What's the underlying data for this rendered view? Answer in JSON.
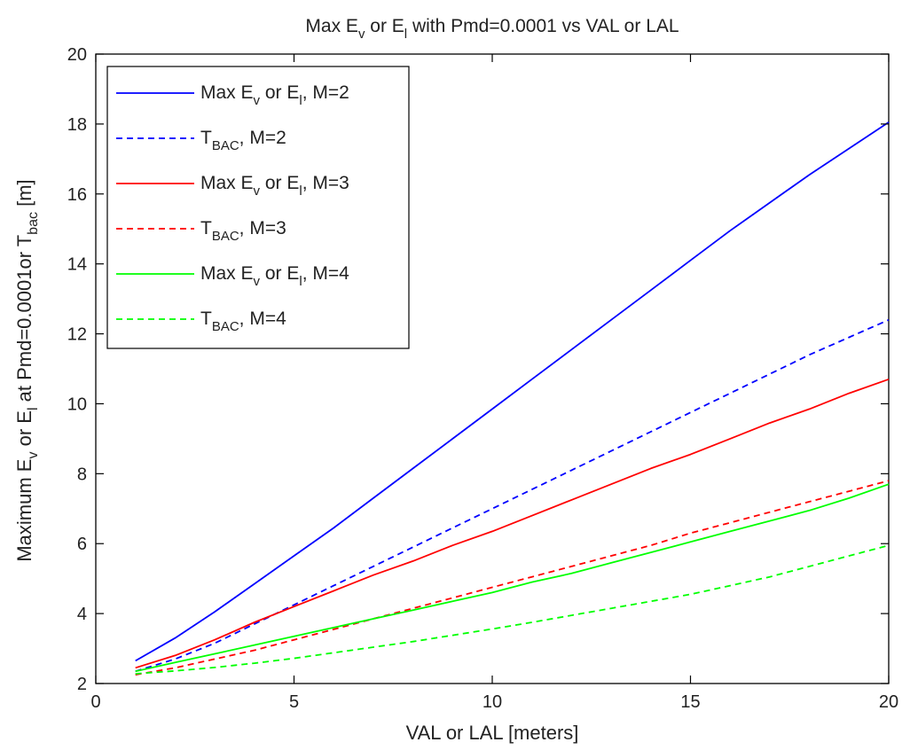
{
  "chart_data": {
    "type": "line",
    "title": {
      "parts": [
        {
          "t": "Max E"
        },
        {
          "t": "v",
          "s": "sub"
        },
        {
          "t": " or E"
        },
        {
          "t": "l",
          "s": "sub"
        },
        {
          "t": " with Pmd=0.0001 vs VAL or LAL"
        }
      ]
    },
    "xlabel": {
      "parts": [
        {
          "t": "VAL or LAL [meters]"
        }
      ]
    },
    "ylabel": {
      "parts": [
        {
          "t": "Maximum E"
        },
        {
          "t": "v",
          "s": "sub"
        },
        {
          "t": " or E"
        },
        {
          "t": "l",
          "s": "sub"
        },
        {
          "t": " at Pmd=0.0001or T"
        },
        {
          "t": "bac",
          "s": "sub"
        },
        {
          "t": " [m]"
        }
      ]
    },
    "xlim": [
      0,
      20
    ],
    "ylim": [
      2,
      20
    ],
    "xticks": [
      0,
      5,
      10,
      15,
      20
    ],
    "xtick_labels": [
      "0",
      "5",
      "10",
      "15",
      "20"
    ],
    "yticks": [
      2,
      4,
      6,
      8,
      10,
      12,
      14,
      16,
      18,
      20
    ],
    "ytick_labels": [
      "2",
      "4",
      "6",
      "8",
      "10",
      "12",
      "14",
      "16",
      "18",
      "20"
    ],
    "grid": false,
    "legend_position": "top-left",
    "x": [
      1,
      2,
      3,
      4,
      5,
      6,
      7,
      8,
      9,
      10,
      11,
      12,
      13,
      14,
      15,
      16,
      17,
      18,
      19,
      20
    ],
    "series": [
      {
        "label": [
          {
            "t": "Max E"
          },
          {
            "t": "v",
            "s": "sub"
          },
          {
            "t": " or E"
          },
          {
            "t": "l",
            "s": "sub"
          },
          {
            "t": ", M=2"
          }
        ],
        "color": "#0000ff",
        "style": "solid",
        "values": [
          2.65,
          3.3,
          4.05,
          4.85,
          5.65,
          6.45,
          7.3,
          8.15,
          9.0,
          9.85,
          10.7,
          11.55,
          12.4,
          13.25,
          14.1,
          14.95,
          15.75,
          16.55,
          17.3,
          18.05
        ]
      },
      {
        "label": [
          {
            "t": "T"
          },
          {
            "t": "BAC",
            "s": "sub"
          },
          {
            "t": ", M=2"
          }
        ],
        "color": "#0000ff",
        "style": "dashed",
        "values": [
          2.35,
          2.7,
          3.15,
          3.7,
          4.25,
          4.8,
          5.35,
          5.9,
          6.45,
          7.0,
          7.55,
          8.1,
          8.65,
          9.2,
          9.75,
          10.3,
          10.85,
          11.4,
          11.9,
          12.4
        ]
      },
      {
        "label": [
          {
            "t": "Max E"
          },
          {
            "t": "v",
            "s": "sub"
          },
          {
            "t": " or E"
          },
          {
            "t": "l",
            "s": "sub"
          },
          {
            "t": ", M=3"
          }
        ],
        "color": "#ff0000",
        "style": "solid",
        "values": [
          2.45,
          2.8,
          3.25,
          3.75,
          4.2,
          4.65,
          5.1,
          5.5,
          5.95,
          6.35,
          6.8,
          7.25,
          7.7,
          8.15,
          8.55,
          9.0,
          9.45,
          9.85,
          10.3,
          10.7
        ]
      },
      {
        "label": [
          {
            "t": "T"
          },
          {
            "t": "BAC",
            "s": "sub"
          },
          {
            "t": ", M=3"
          }
        ],
        "color": "#ff0000",
        "style": "dashed",
        "values": [
          2.25,
          2.45,
          2.7,
          2.95,
          3.25,
          3.55,
          3.85,
          4.15,
          4.45,
          4.75,
          5.05,
          5.35,
          5.65,
          5.95,
          6.3,
          6.6,
          6.9,
          7.2,
          7.5,
          7.8
        ]
      },
      {
        "label": [
          {
            "t": "Max E"
          },
          {
            "t": "v",
            "s": "sub"
          },
          {
            "t": " or E"
          },
          {
            "t": "l",
            "s": "sub"
          },
          {
            "t": ", M=4"
          }
        ],
        "color": "#00ff00",
        "style": "solid",
        "values": [
          2.35,
          2.6,
          2.85,
          3.1,
          3.35,
          3.6,
          3.85,
          4.1,
          4.35,
          4.6,
          4.9,
          5.15,
          5.45,
          5.75,
          6.05,
          6.35,
          6.65,
          6.95,
          7.3,
          7.7
        ]
      },
      {
        "label": [
          {
            "t": "T"
          },
          {
            "t": "BAC",
            "s": "sub"
          },
          {
            "t": ", M=4"
          }
        ],
        "color": "#00ff00",
        "style": "dashed",
        "values": [
          2.28,
          2.36,
          2.46,
          2.58,
          2.72,
          2.88,
          3.04,
          3.2,
          3.38,
          3.56,
          3.75,
          3.95,
          4.15,
          4.35,
          4.55,
          4.8,
          5.05,
          5.35,
          5.65,
          5.95
        ]
      }
    ]
  }
}
